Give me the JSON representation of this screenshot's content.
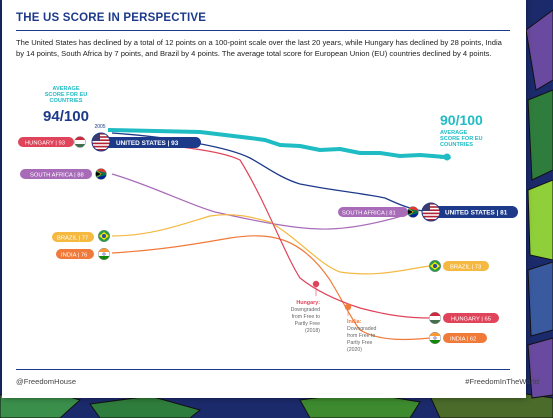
{
  "header": {
    "title": "THE US SCORE IN PERSPECTIVE",
    "intro": "The United States has declined by a total of 12 points on a 100-point scale over the last 20 years, while Hungary has declined by 28 points, India by 14 points, South Africa by 7 points, and Brazil by 4 points. The average total score for European Union (EU) countries declined by 4 points."
  },
  "footer": {
    "left": "@FreedomHouse",
    "right": "#FreedomInTheWorld"
  },
  "colors": {
    "eu": "#1fbcc4",
    "us": "#1d3a8a",
    "hungary": "#e0445a",
    "south_africa": "#a86bb8",
    "brazil": "#f5b942",
    "india": "#f07a3a"
  },
  "chart_data": {
    "type": "line",
    "x": [
      "2005",
      "2025"
    ],
    "series": [
      {
        "key": "eu",
        "start_value": 94,
        "end_value": 90
      },
      {
        "key": "us",
        "start_value": 93,
        "end_value": 81
      },
      {
        "key": "hungary",
        "start_value": 93,
        "end_value": 65
      },
      {
        "key": "south_africa",
        "start_value": 88,
        "end_value": 81
      },
      {
        "key": "brazil",
        "start_value": 77,
        "end_value": 73
      },
      {
        "key": "india",
        "start_value": 76,
        "end_value": 62
      }
    ],
    "start_labels": {
      "hungary": "HUNGARY | 93",
      "us": "UNITED STATES | 93",
      "south_africa": "SOUTH AFRICA | 88",
      "brazil": "BRAZIL | 77",
      "india": "INDIA | 76"
    },
    "end_labels": {
      "south_africa": "SOUTH AFRICA | 81",
      "us": "UNITED STATES | 81",
      "brazil": "BRAZIL | 73",
      "hungary": "HUNGARY | 65",
      "india": "INDIA | 62"
    },
    "eu_start": {
      "caption_1": "AVERAGE",
      "caption_2": "SCORE FOR EU",
      "caption_3": "COUNTRIES",
      "score": "94/100",
      "year": "2005"
    },
    "eu_end": {
      "score": "90/100",
      "caption_1": "AVERAGE",
      "caption_2": "SCORE FOR EU",
      "caption_3": "COUNTRIES",
      "year": "2025"
    },
    "annotations": [
      {
        "key": "hungary",
        "title": "Hungary:",
        "lines": [
          "Downgraded",
          "from Free to",
          "Partly Free",
          "(2018)"
        ]
      },
      {
        "key": "india",
        "title": "India:",
        "lines": [
          "Downgraded",
          "from Free to",
          "Partly Free",
          "(2020)"
        ]
      }
    ]
  }
}
